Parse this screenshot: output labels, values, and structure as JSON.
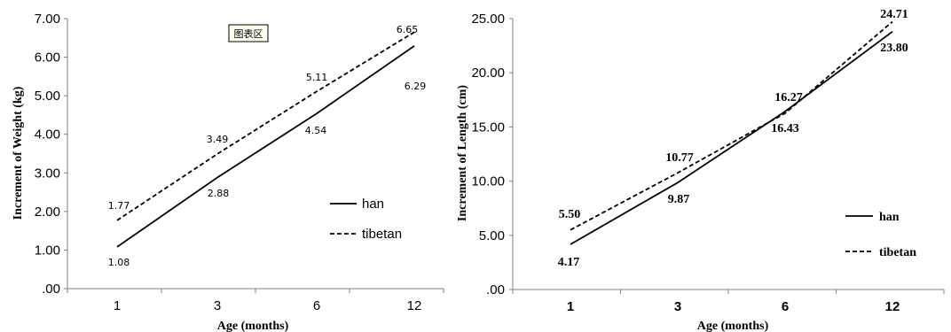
{
  "chart_data": [
    {
      "type": "line",
      "categories": [
        "1",
        "3",
        "6",
        "12"
      ],
      "xlabel": "Age (months)",
      "ylabel": "Increment of Weight (kg)",
      "ylim": [
        0,
        7
      ],
      "yticks": [
        ".00",
        "1.00",
        "2.00",
        "3.00",
        "4.00",
        "5.00",
        "6.00",
        "7.00"
      ],
      "series": [
        {
          "name": "han",
          "style": "solid",
          "values": [
            1.08,
            2.88,
            4.54,
            6.29
          ],
          "labels": [
            "1.08",
            "2.88",
            "4.54",
            "6.29"
          ]
        },
        {
          "name": "tibetan",
          "style": "dashed",
          "values": [
            1.77,
            3.49,
            5.11,
            6.65
          ],
          "labels": [
            "1.77",
            "3.49",
            "5.11",
            "6.65"
          ]
        }
      ],
      "legend": "right",
      "annotation": "图表区"
    },
    {
      "type": "line",
      "categories": [
        "1",
        "3",
        "6",
        "12"
      ],
      "xlabel": "Age (months)",
      "ylabel": "Increment of Length (cm)",
      "ylim": [
        0,
        25
      ],
      "yticks": [
        ".00",
        "5.00",
        "10.00",
        "15.00",
        "20.00",
        "25.00"
      ],
      "series": [
        {
          "name": "han",
          "style": "solid",
          "values": [
            4.17,
            9.87,
            16.43,
            23.8
          ],
          "labels": [
            "4.17",
            "9.87",
            "16.43",
            "23.80"
          ]
        },
        {
          "name": "tibetan",
          "style": "dashed",
          "values": [
            5.5,
            10.77,
            16.27,
            24.71
          ],
          "labels": [
            "5.50",
            "10.77",
            "16.27",
            "24.71"
          ]
        }
      ],
      "legend": "right"
    }
  ]
}
